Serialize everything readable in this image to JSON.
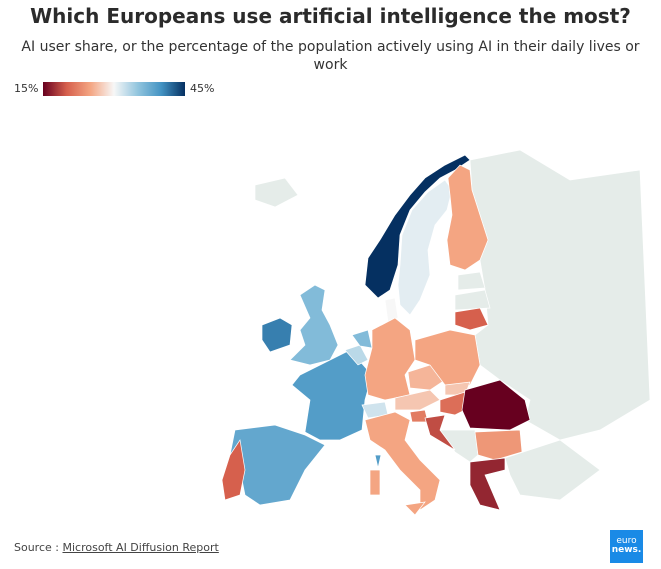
{
  "title": "Which Europeans use artificial intelligence the most?",
  "subtitle": "AI user share, or the percentage of the population actively using AI in their daily lives or work",
  "legend": {
    "min_label": "15%",
    "max_label": "45%",
    "min": 15,
    "max": 45,
    "colors": [
      "#67001f",
      "#d6604d",
      "#f4a582",
      "#f7f7f7",
      "#92c5de",
      "#4393c3",
      "#053061"
    ]
  },
  "no_data_color": "#e5ece9",
  "regions": [
    {
      "id": "NO",
      "value": 45
    },
    {
      "id": "IE",
      "value": 41
    },
    {
      "id": "FR",
      "value": 39
    },
    {
      "id": "ES",
      "value": 38
    },
    {
      "id": "GB",
      "value": 36
    },
    {
      "id": "NL",
      "value": 36
    },
    {
      "id": "BE",
      "value": 33
    },
    {
      "id": "CH",
      "value": 32
    },
    {
      "id": "SE",
      "value": 31
    },
    {
      "id": "DK",
      "value": 30
    },
    {
      "id": "CORSICA",
      "value": 39
    },
    {
      "id": "FI",
      "value": 25
    },
    {
      "id": "DE",
      "value": 25
    },
    {
      "id": "PL",
      "value": 25
    },
    {
      "id": "AT",
      "value": 27
    },
    {
      "id": "CZ",
      "value": 26
    },
    {
      "id": "SK",
      "value": 27
    },
    {
      "id": "HU",
      "value": 21
    },
    {
      "id": "LT",
      "value": 20
    },
    {
      "id": "IT",
      "value": 25
    },
    {
      "id": "SARDINIA",
      "value": 25
    },
    {
      "id": "SICILY",
      "value": 25
    },
    {
      "id": "PT",
      "value": 20
    },
    {
      "id": "HR",
      "value": 19
    },
    {
      "id": "SI",
      "value": 22
    },
    {
      "id": "BG",
      "value": 24
    },
    {
      "id": "RO",
      "value": 15
    },
    {
      "id": "GR",
      "value": 17
    }
  ],
  "source": {
    "prefix": "Source : ",
    "link": "Microsoft AI Diffusion Report"
  },
  "logo": {
    "line1": "euro",
    "line2": "news."
  }
}
